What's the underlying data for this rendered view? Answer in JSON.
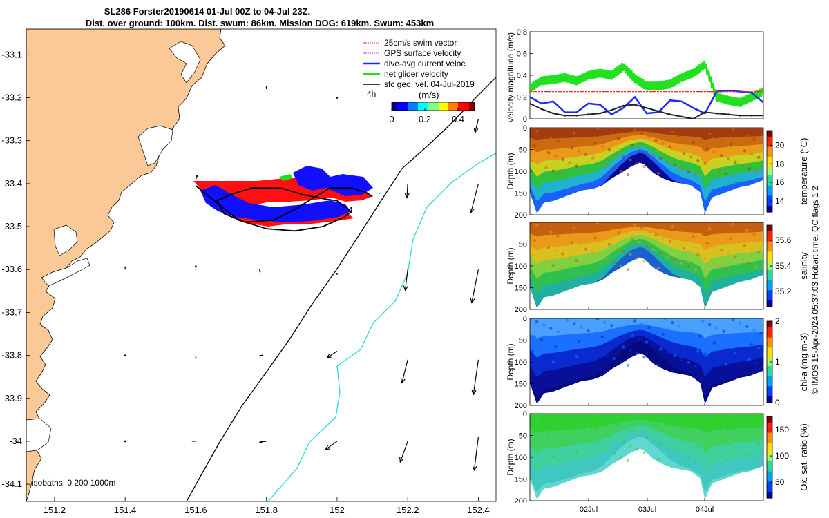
{
  "header": {
    "line1": "SL286 Forster20190614 01-Jul 00Z to 04-Jul 23Z.",
    "line2": "Dist. over ground: 100km. Dist. swum: 86km. Mission DOG: 619km. Swum: 453km"
  },
  "side_note": "© IMOS 15-Apr-2024 05:37:03 Hobart time. QC flags 1  2",
  "chart_data": [
    {
      "id": "map",
      "type": "scatter",
      "title": "Glider track map",
      "xlim": [
        151.12,
        152.45
      ],
      "ylim": [
        -34.14,
        -33.04
      ],
      "x_ticks": [
        151.2,
        151.4,
        151.6,
        151.8,
        152.0,
        152.2,
        152.4
      ],
      "x_tick_labels": [
        "151.2",
        "151.4",
        "151.6",
        "151.8",
        "152",
        "152.2",
        "152.4"
      ],
      "y_ticks": [
        -33.1,
        -33.2,
        -33.3,
        -33.4,
        -33.5,
        -33.6,
        -33.7,
        -33.8,
        -33.9,
        -34.0,
        -34.1
      ],
      "y_tick_labels": [
        "-33.1",
        "-33.2",
        "-33.3",
        "-33.4",
        "-33.5",
        "-33.6",
        "-33.7",
        "-33.8",
        "-33.9",
        "-34",
        "-34.1"
      ],
      "legend": [
        {
          "label": "25cm/s swim vector",
          "color": "#ff2020"
        },
        {
          "label": "GPS surface velocity",
          "color": "#e020e0"
        },
        {
          "label": "dive-avg current veloc.",
          "color": "#1a2aff"
        },
        {
          "label": "net glider velocity",
          "color": "#20e020"
        },
        {
          "label": "sfc geo. vel. 04-Jul-2019",
          "color": "#000000"
        }
      ],
      "legend_extra": "4h",
      "colorbar": {
        "label": "(m/s)",
        "ticks": [
          0,
          0.2,
          0.4
        ],
        "tick_labels": [
          "0",
          "0.2",
          "0.4"
        ],
        "range": [
          0,
          0.5
        ]
      },
      "isobath_label": "isobaths: 0   200  1000m",
      "track_labels": [
        "1",
        "4"
      ],
      "track_points": [
        {
          "lon": 151.6,
          "lat": -33.405
        },
        {
          "lon": 151.66,
          "lat": -33.445
        },
        {
          "lon": 151.72,
          "lat": -33.485
        },
        {
          "lon": 151.8,
          "lat": -33.505
        },
        {
          "lon": 151.88,
          "lat": -33.51
        },
        {
          "lon": 151.96,
          "lat": -33.5
        },
        {
          "lon": 152.02,
          "lat": -33.478
        },
        {
          "lon": 152.04,
          "lat": -33.465
        },
        {
          "lon": 152.0,
          "lat": -33.44
        },
        {
          "lon": 151.96,
          "lat": -33.435
        },
        {
          "lon": 151.9,
          "lat": -33.425
        },
        {
          "lon": 151.84,
          "lat": -33.41
        },
        {
          "lon": 151.76,
          "lat": -33.41
        },
        {
          "lon": 151.7,
          "lat": -33.425
        },
        {
          "lon": 151.66,
          "lat": -33.44
        },
        {
          "lon": 151.68,
          "lat": -33.47
        },
        {
          "lon": 151.74,
          "lat": -33.49
        },
        {
          "lon": 151.82,
          "lat": -33.485
        },
        {
          "lon": 151.88,
          "lat": -33.46
        },
        {
          "lon": 151.94,
          "lat": -33.43
        },
        {
          "lon": 151.98,
          "lat": -33.41
        },
        {
          "lon": 152.04,
          "lat": -33.41
        },
        {
          "lon": 152.08,
          "lat": -33.42
        },
        {
          "lon": 152.1,
          "lat": -33.43
        }
      ],
      "vectors": [
        {
          "lon": 151.6,
          "lat": -33.39,
          "u": 0.02,
          "v": 0.05
        },
        {
          "lon": 151.6,
          "lat": -33.6,
          "u": 0.0,
          "v": 0.05
        },
        {
          "lon": 151.78,
          "lat": -33.6,
          "u": 0.01,
          "v": -0.03
        },
        {
          "lon": 151.4,
          "lat": -33.6,
          "u": 0.0,
          "v": 0.03
        },
        {
          "lon": 151.8,
          "lat": -33.18,
          "u": 0.0,
          "v": 0.03
        },
        {
          "lon": 152.0,
          "lat": -33.61,
          "u": -0.01,
          "v": -0.02
        },
        {
          "lon": 152.2,
          "lat": -33.6,
          "u": -0.03,
          "v": -0.25
        },
        {
          "lon": 152.2,
          "lat": -33.4,
          "u": -0.01,
          "v": -0.17
        },
        {
          "lon": 152.4,
          "lat": -33.4,
          "u": -0.09,
          "v": -0.35
        },
        {
          "lon": 152.4,
          "lat": -33.6,
          "u": -0.08,
          "v": -0.4
        },
        {
          "lon": 152.4,
          "lat": -33.81,
          "u": -0.06,
          "v": -0.42
        },
        {
          "lon": 152.4,
          "lat": -33.99,
          "u": -0.05,
          "v": -0.4
        },
        {
          "lon": 152.2,
          "lat": -33.81,
          "u": -0.07,
          "v": -0.28
        },
        {
          "lon": 152.2,
          "lat": -34.0,
          "u": -0.09,
          "v": -0.25
        },
        {
          "lon": 152.0,
          "lat": -33.79,
          "u": -0.12,
          "v": -0.08
        },
        {
          "lon": 152.0,
          "lat": -34.0,
          "u": -0.14,
          "v": -0.1
        },
        {
          "lon": 151.8,
          "lat": -34.0,
          "u": -0.08,
          "v": -0.01
        },
        {
          "lon": 151.6,
          "lat": -34.0,
          "u": -0.04,
          "v": 0.0
        },
        {
          "lon": 151.4,
          "lat": -34.0,
          "u": 0.0,
          "v": 0.0
        },
        {
          "lon": 151.4,
          "lat": -33.8,
          "u": 0.0,
          "v": 0.02
        },
        {
          "lon": 151.6,
          "lat": -33.8,
          "u": 0.0,
          "v": -0.03
        },
        {
          "lon": 151.78,
          "lat": -33.8,
          "u": 0.04,
          "v": 0.0
        },
        {
          "lon": 152.0,
          "lat": -33.2,
          "u": 0.0,
          "v": 0.01
        },
        {
          "lon": 152.4,
          "lat": -33.25,
          "u": -0.04,
          "v": -0.16
        }
      ]
    },
    {
      "id": "velocity",
      "type": "line",
      "ylabel": "velocity magnitude (m/s)",
      "ylim": [
        0,
        0.8
      ],
      "y_ticks": [
        0,
        0.2,
        0.4,
        0.6,
        0.8
      ],
      "y_tick_labels": [
        "0",
        "0.2",
        "0.4",
        "0.6",
        "0.8"
      ],
      "xlim": [
        0,
        4
      ],
      "series": [
        {
          "name": "net glider velocity",
          "color": "#20e020",
          "x": [
            0,
            0.2,
            0.4,
            0.6,
            0.8,
            1.0,
            1.2,
            1.4,
            1.6,
            1.8,
            2.0,
            2.2,
            2.4,
            2.6,
            2.8,
            3.0,
            3.2,
            3.4,
            3.6,
            3.8,
            4.0
          ],
          "y": [
            0.28,
            0.35,
            0.36,
            0.38,
            0.35,
            0.4,
            0.42,
            0.4,
            0.48,
            0.37,
            0.3,
            0.3,
            0.32,
            0.38,
            0.42,
            0.5,
            0.2,
            0.17,
            0.15,
            0.2,
            0.25
          ]
        },
        {
          "name": "dive-avg current veloc.",
          "color": "#1a2aff",
          "x": [
            0,
            0.2,
            0.4,
            0.6,
            0.8,
            1.0,
            1.2,
            1.4,
            1.6,
            1.8,
            2.0,
            2.2,
            2.4,
            2.6,
            2.8,
            3.0,
            3.2,
            3.4,
            3.6,
            3.8,
            4.0
          ],
          "y": [
            0.2,
            0.14,
            0.16,
            0.06,
            0.06,
            0.14,
            0.13,
            0.04,
            0.1,
            0.2,
            0.05,
            0.06,
            0.17,
            0.16,
            0.1,
            0.05,
            0.25,
            0.26,
            0.25,
            0.24,
            0.15
          ]
        },
        {
          "name": "sfc geo. vel.",
          "color": "#222222",
          "x": [
            0,
            0.2,
            0.4,
            0.6,
            0.8,
            1.0,
            1.2,
            1.4,
            1.6,
            1.8,
            2.0,
            2.2,
            2.4,
            2.6,
            2.8,
            3.0,
            3.2,
            3.4,
            3.6,
            3.8,
            4.0
          ],
          "y": [
            0.14,
            0.09,
            0.05,
            0.03,
            0.03,
            0.04,
            0.05,
            0.08,
            0.12,
            0.13,
            0.1,
            0.07,
            0.04,
            0.02,
            0.0,
            0.06,
            0.05,
            0.04,
            0.03,
            0.03,
            0.03
          ]
        },
        {
          "name": "25cm/s swim vector",
          "color": "#ff2020",
          "x": [
            0,
            4
          ],
          "y": [
            0.25,
            0.25
          ]
        }
      ]
    },
    {
      "id": "temperature",
      "type": "heatmap",
      "ylabel": "Depth (m)",
      "cbar_label": "temperature (°C)",
      "ylim": [
        200,
        0
      ],
      "y_tick_labels": [
        "0",
        "50",
        "100",
        "150",
        "200"
      ],
      "cbar_ticks": [
        14,
        16,
        18,
        20
      ],
      "cbar_range": [
        12.8,
        21.6
      ],
      "colors": [
        "#a33a10",
        "#cc6a10",
        "#e89a18",
        "#c8d020",
        "#30c040",
        "#20b0d0",
        "#1a60ff",
        "#0a0a90"
      ]
    },
    {
      "id": "salinity",
      "type": "heatmap",
      "ylabel": "Depth (m)",
      "cbar_label": "salinity",
      "ylim": [
        200,
        0
      ],
      "y_tick_labels": [
        "50",
        "100",
        "150",
        "200"
      ],
      "cbar_ticks": [
        35.2,
        35.4,
        35.6
      ],
      "cbar_range": [
        35.08,
        35.72
      ],
      "colors": [
        "#c66010",
        "#e89a18",
        "#d8c020",
        "#80d040",
        "#30c050",
        "#20b0a0",
        "#1a60d0"
      ]
    },
    {
      "id": "chla",
      "type": "heatmap",
      "ylabel": "Depth (m)",
      "cbar_label": "chl-a (mg m-3)",
      "ylim": [
        200,
        0
      ],
      "y_tick_labels": [
        "0",
        "50",
        "100",
        "150",
        "200"
      ],
      "cbar_ticks": [
        0,
        1,
        2
      ],
      "cbar_range": [
        0,
        2
      ],
      "colors": [
        "#4aa0ff",
        "#1a70ff",
        "#0a2ad0",
        "#08109a",
        "#050a80"
      ]
    },
    {
      "id": "oxygen",
      "type": "heatmap",
      "ylabel": "Depth (m)",
      "cbar_label": "Ox. sat. ratio (%)",
      "ylim": [
        200,
        0
      ],
      "y_tick_labels": [
        "0",
        "50",
        "100",
        "150",
        "200"
      ],
      "x_tick_labels": [
        "02Jul",
        "03Jul",
        "04Jul"
      ],
      "cbar_ticks": [
        50,
        100,
        150
      ],
      "cbar_range": [
        20,
        175
      ],
      "colors": [
        "#30d030",
        "#40d060",
        "#40d0a0",
        "#40c8c0",
        "#60d8d0"
      ]
    }
  ]
}
